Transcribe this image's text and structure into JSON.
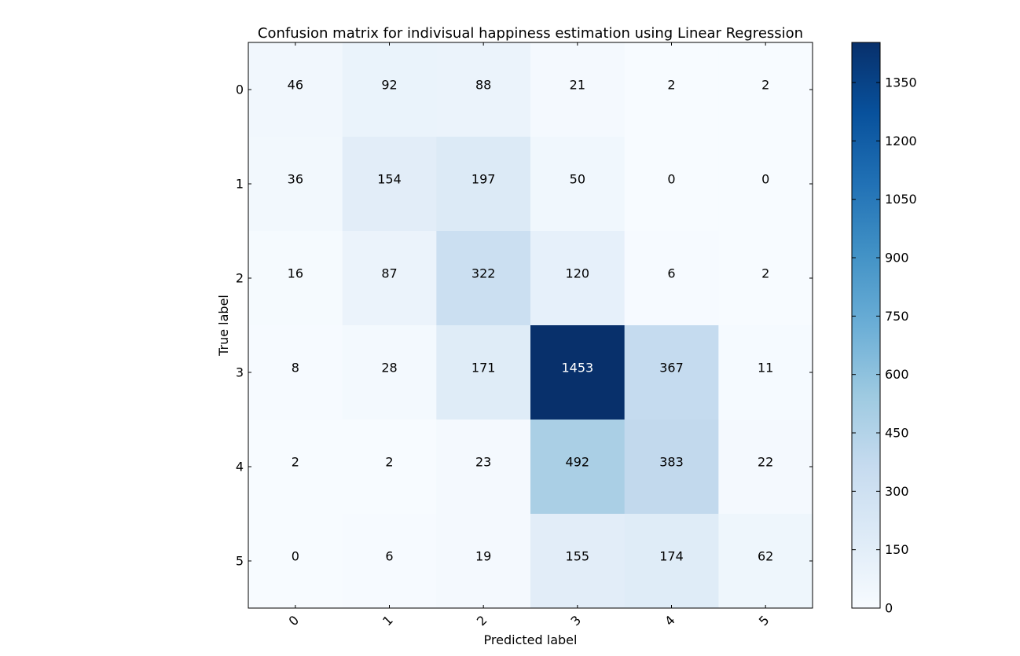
{
  "chart_data": {
    "type": "heatmap",
    "title": "Confusion matrix for indivisual happiness estimation using Linear Regression",
    "xlabel": "Predicted label",
    "ylabel": "True label",
    "x_ticks": [
      "0",
      "1",
      "2",
      "3",
      "4",
      "5"
    ],
    "y_ticks": [
      "0",
      "1",
      "2",
      "3",
      "4",
      "5"
    ],
    "values": [
      [
        46,
        92,
        88,
        21,
        2,
        2
      ],
      [
        36,
        154,
        197,
        50,
        0,
        0
      ],
      [
        16,
        87,
        322,
        120,
        6,
        2
      ],
      [
        8,
        28,
        171,
        1453,
        367,
        11
      ],
      [
        2,
        2,
        23,
        492,
        383,
        22
      ],
      [
        0,
        6,
        19,
        155,
        174,
        62
      ]
    ],
    "colormap": "Blues",
    "color_range": [
      0,
      1453
    ],
    "colorbar_ticks": [
      "0",
      "150",
      "300",
      "450",
      "600",
      "750",
      "900",
      "1050",
      "1200",
      "1350"
    ],
    "x_tick_rotation_deg": 45,
    "text_color_dark": "#000000",
    "text_color_light": "#ffffff",
    "grid": false
  }
}
